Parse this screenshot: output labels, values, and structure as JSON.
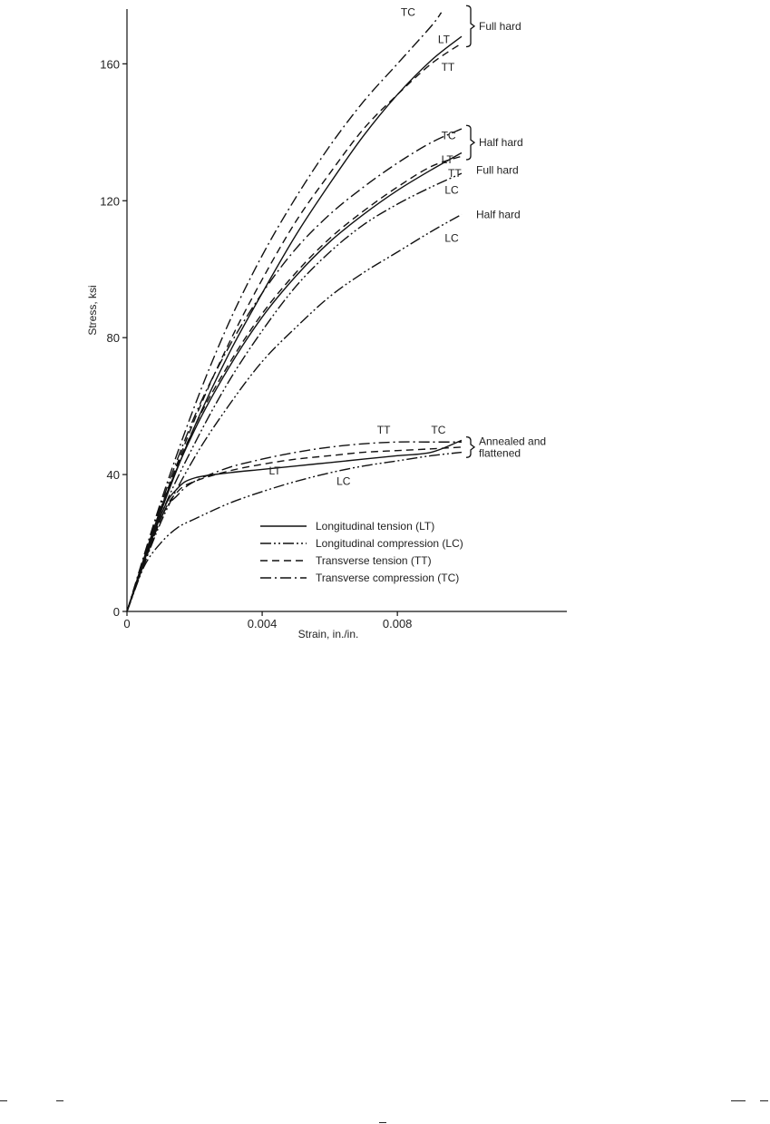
{
  "chart_data": {
    "type": "line",
    "title": "",
    "xlabel": "Strain, in./in.",
    "ylabel": "Stress, ksi",
    "xlim": [
      0,
      0.013
    ],
    "ylim": [
      0,
      176
    ],
    "xticks": [
      0,
      0.004,
      0.008
    ],
    "xtick_labels": [
      "0",
      "0.004",
      "0.008"
    ],
    "yticks": [
      0,
      40,
      80,
      120,
      160
    ],
    "ytick_labels": [
      "0",
      "40",
      "80",
      "120",
      "160"
    ],
    "grid": false,
    "legend_position": "bottom-center",
    "legend": [
      {
        "label": "Longitudinal tension (LT)",
        "style": "solid"
      },
      {
        "label": "Longitudinal compression (LC)",
        "style": "dashdotdot"
      },
      {
        "label": "Transverse tension (TT)",
        "style": "dashed"
      },
      {
        "label": "Transverse compression (TC)",
        "style": "dashdot"
      }
    ],
    "groups": [
      {
        "label": "Full hard",
        "bracket_y": [
          165,
          177
        ]
      },
      {
        "label": "Half hard",
        "bracket_y": [
          132,
          142
        ]
      },
      {
        "label": "Annealed and\nflattened",
        "bracket_y": [
          45,
          51
        ]
      }
    ],
    "series": [
      {
        "name": "TC",
        "group": "Full hard",
        "style": "dashdot",
        "x": [
          0,
          0.001,
          0.002,
          0.003,
          0.004,
          0.005,
          0.006,
          0.007,
          0.008,
          0.009,
          0.0093
        ],
        "y": [
          0,
          32,
          60,
          84,
          104,
          121,
          136,
          149,
          160,
          171,
          175
        ]
      },
      {
        "name": "LT",
        "group": "Full hard",
        "style": "solid",
        "x": [
          0,
          0.001,
          0.002,
          0.003,
          0.004,
          0.005,
          0.006,
          0.007,
          0.008,
          0.009,
          0.0099
        ],
        "y": [
          0,
          29,
          54,
          75,
          93,
          110,
          125,
          139,
          151,
          161,
          168
        ]
      },
      {
        "name": "TT",
        "group": "Full hard",
        "style": "dashed",
        "x": [
          0,
          0.001,
          0.002,
          0.003,
          0.004,
          0.005,
          0.006,
          0.007,
          0.008,
          0.009,
          0.0099
        ],
        "y": [
          0,
          30,
          56,
          78,
          97,
          114,
          128,
          141,
          151,
          160,
          166
        ]
      },
      {
        "name": "TC",
        "group": "Half hard",
        "style": "dashdot",
        "x": [
          0,
          0.001,
          0.002,
          0.003,
          0.004,
          0.005,
          0.006,
          0.007,
          0.008,
          0.009,
          0.0099
        ],
        "y": [
          0,
          31,
          57,
          77,
          93,
          106,
          116,
          124,
          131,
          137,
          141
        ]
      },
      {
        "name": "LT",
        "group": "Half hard",
        "style": "solid",
        "x": [
          0,
          0.001,
          0.002,
          0.003,
          0.004,
          0.005,
          0.006,
          0.007,
          0.008,
          0.009,
          0.0099
        ],
        "y": [
          0,
          30,
          53,
          71,
          86,
          98,
          108,
          116,
          123,
          129,
          134
        ]
      },
      {
        "name": "TT",
        "group": "Half hard",
        "style": "dashed",
        "x": [
          0,
          0.001,
          0.002,
          0.003,
          0.004,
          0.005,
          0.006,
          0.007,
          0.008,
          0.009,
          0.0099
        ],
        "y": [
          0,
          30,
          54,
          72,
          87,
          99,
          109,
          117,
          124,
          130,
          133
        ]
      },
      {
        "name": "LC",
        "group": "Full hard",
        "style": "dashdotdot",
        "x": [
          0,
          0.001,
          0.002,
          0.003,
          0.004,
          0.005,
          0.006,
          0.007,
          0.008,
          0.009,
          0.0099
        ],
        "y": [
          0,
          28,
          49,
          67,
          82,
          95,
          105,
          113,
          119,
          124,
          128
        ]
      },
      {
        "name": "LC",
        "group": "Half hard",
        "style": "dashdotdot",
        "x": [
          0,
          0.001,
          0.002,
          0.003,
          0.004,
          0.005,
          0.006,
          0.007,
          0.008,
          0.009,
          0.0099
        ],
        "y": [
          0,
          26,
          45,
          60,
          73,
          83,
          92,
          99,
          105,
          111,
          116
        ]
      },
      {
        "name": "TT",
        "group": "Annealed and\nflattened",
        "style": "dashed",
        "x": [
          0,
          0.001,
          0.0015,
          0.002,
          0.003,
          0.004,
          0.005,
          0.006,
          0.007,
          0.008,
          0.009,
          0.0099
        ],
        "y": [
          0,
          27,
          35,
          38,
          41,
          43,
          44.5,
          45.5,
          46.5,
          47,
          47.5,
          48
        ]
      },
      {
        "name": "TC",
        "group": "Annealed and\nflattened",
        "style": "dashdot",
        "x": [
          0,
          0.001,
          0.0015,
          0.002,
          0.003,
          0.004,
          0.005,
          0.006,
          0.007,
          0.008,
          0.009,
          0.0099
        ],
        "y": [
          0,
          27,
          34,
          38,
          42,
          44.5,
          46.5,
          48,
          49,
          49.5,
          49.5,
          49.5
        ]
      },
      {
        "name": "LT",
        "group": "Annealed and\nflattened",
        "style": "solid",
        "x": [
          0,
          0.001,
          0.0015,
          0.002,
          0.003,
          0.004,
          0.005,
          0.006,
          0.007,
          0.008,
          0.009,
          0.0099
        ],
        "y": [
          0,
          28,
          36,
          39,
          40.5,
          41.5,
          42.5,
          43.5,
          44.5,
          45.5,
          46.5,
          50
        ]
      },
      {
        "name": "LC",
        "group": "Annealed and\nflattened",
        "style": "dashdotdot",
        "x": [
          0,
          0.0005,
          0.001,
          0.0015,
          0.002,
          0.003,
          0.004,
          0.005,
          0.006,
          0.007,
          0.008,
          0.009,
          0.0099
        ],
        "y": [
          0,
          13,
          20,
          24.5,
          27,
          31.5,
          35,
          38,
          40.5,
          42.5,
          44,
          45.5,
          46.5
        ]
      }
    ],
    "curve_labels": [
      {
        "text": "TC",
        "x": 0.0081,
        "y": 174
      },
      {
        "text": "LT",
        "x": 0.0092,
        "y": 166
      },
      {
        "text": "TT",
        "x": 0.0093,
        "y": 158
      },
      {
        "text": "TC",
        "x": 0.0093,
        "y": 138
      },
      {
        "text": "LT",
        "x": 0.0093,
        "y": 131
      },
      {
        "text": "TT",
        "x": 0.0095,
        "y": 127
      },
      {
        "text": "LC",
        "x": 0.0094,
        "y": 122
      },
      {
        "text": "LC",
        "x": 0.0094,
        "y": 108
      },
      {
        "text": "TT",
        "x": 0.0074,
        "y": 52
      },
      {
        "text": "TC",
        "x": 0.009,
        "y": 52
      },
      {
        "text": "LT",
        "x": 0.0042,
        "y": 40
      },
      {
        "text": "LC",
        "x": 0.0062,
        "y": 37
      }
    ],
    "annotations": [
      {
        "text": "Full hard",
        "near_group": "Full hard"
      },
      {
        "text": "Half hard",
        "near_group": "Half hard"
      },
      {
        "text": "Full hard",
        "near_series": "LC",
        "y": 129
      },
      {
        "text": "Half hard",
        "near_series": "LC",
        "y": 116
      }
    ]
  }
}
